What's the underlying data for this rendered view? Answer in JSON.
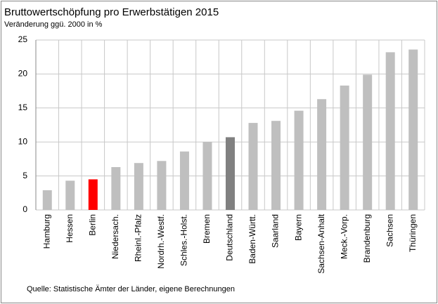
{
  "chart_data": {
    "type": "bar",
    "title": "Bruttowertschöpfung  pro Erwerbstätigen 2015",
    "subtitle": "Veränderung ggü. 2000 in %",
    "source": "Quelle: Statistische Ämter der Länder,  eigene Berechnungen",
    "categories": [
      "Hamburg",
      "Hessen",
      "Berlin",
      "Niedersach.",
      "Rheinl.-Pfalz",
      "Nordrh.-Westf.",
      "Schles.-Holst.",
      "Bremen",
      "Deutschland",
      "Baden-Württ.",
      "Saarland",
      "Bayern",
      "Sachsen-Anhalt",
      "Meck.-Vorp.",
      "Brandenburg",
      "Sachsen",
      "Thüringen"
    ],
    "values": [
      2.9,
      4.3,
      4.5,
      6.3,
      6.9,
      7.2,
      8.6,
      10.0,
      10.7,
      12.8,
      13.1,
      14.6,
      16.3,
      18.3,
      19.9,
      23.2,
      23.6
    ],
    "colors": [
      "#bfbfbf",
      "#bfbfbf",
      "#ff0000",
      "#bfbfbf",
      "#bfbfbf",
      "#bfbfbf",
      "#bfbfbf",
      "#bfbfbf",
      "#808080",
      "#bfbfbf",
      "#bfbfbf",
      "#bfbfbf",
      "#bfbfbf",
      "#bfbfbf",
      "#bfbfbf",
      "#bfbfbf",
      "#bfbfbf"
    ],
    "ylim": [
      0,
      25
    ],
    "yticks": [
      0,
      5,
      10,
      15,
      20,
      25
    ],
    "grid": true
  }
}
